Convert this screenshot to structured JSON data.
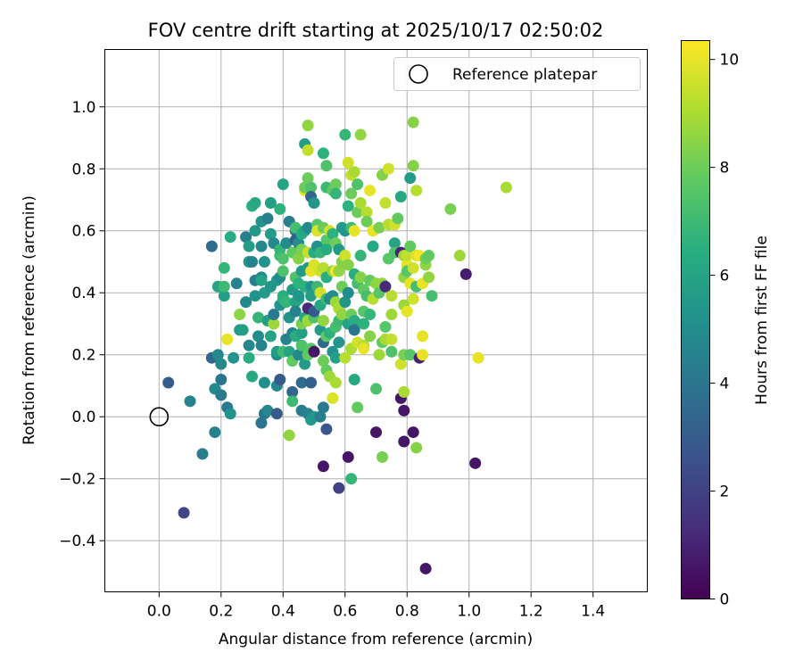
{
  "chart_data": {
    "type": "scatter",
    "title": "FOV centre drift starting at 2025/10/17 02:50:02",
    "xlabel": "Angular distance from reference (arcmin)",
    "ylabel": "Rotation from reference (arcmin)",
    "xlim": [
      -0.175,
      1.575
    ],
    "ylim": [
      -0.565,
      1.185
    ],
    "xticks": [
      0.0,
      0.2,
      0.4,
      0.6,
      0.8,
      1.0,
      1.2,
      1.4
    ],
    "xtick_labels": [
      "0.0",
      "0.2",
      "0.4",
      "0.6",
      "0.8",
      "1.0",
      "1.2",
      "1.4"
    ],
    "yticks": [
      -0.4,
      -0.2,
      0.0,
      0.2,
      0.4,
      0.6,
      0.8,
      1.0
    ],
    "ytick_labels": [
      "−0.4",
      "−0.2",
      "0.0",
      "0.2",
      "0.4",
      "0.6",
      "0.8",
      "1.0"
    ],
    "grid": true,
    "legend": {
      "position": "top-right",
      "entries": [
        "Reference platepar"
      ]
    },
    "reference_point": {
      "x": 0.0,
      "y": 0.0,
      "label": "Reference platepar"
    },
    "colorbar": {
      "label": "Hours from first FF file",
      "range": [
        0,
        10.35
      ],
      "ticks": [
        0,
        2,
        4,
        6,
        8,
        10
      ],
      "tick_labels": [
        "0",
        "2",
        "4",
        "6",
        "8",
        "10"
      ],
      "colormap": "viridis"
    },
    "points": [
      [
        0.03,
        0.11,
        3.0
      ],
      [
        0.08,
        -0.31,
        2.2
      ],
      [
        0.1,
        0.05,
        4.6
      ],
      [
        0.14,
        -0.12,
        4.4
      ],
      [
        0.17,
        0.19,
        3.4
      ],
      [
        0.17,
        0.55,
        3.6
      ],
      [
        0.18,
        0.09,
        4.9
      ],
      [
        0.18,
        -0.05,
        4.6
      ],
      [
        0.19,
        0.42,
        6.0
      ],
      [
        0.19,
        0.2,
        4.8
      ],
      [
        0.2,
        0.17,
        4.8
      ],
      [
        0.2,
        0.12,
        4.0
      ],
      [
        0.2,
        0.07,
        4.3
      ],
      [
        0.21,
        0.48,
        6.8
      ],
      [
        0.21,
        0.39,
        5.8
      ],
      [
        0.21,
        0.42,
        7.0
      ],
      [
        0.22,
        0.03,
        4.2
      ],
      [
        0.22,
        0.25,
        10.0
      ],
      [
        0.23,
        0.58,
        6.4
      ],
      [
        0.23,
        0.01,
        5.2
      ],
      [
        0.24,
        0.19,
        5.3
      ],
      [
        0.25,
        0.43,
        4.6
      ],
      [
        0.26,
        0.28,
        5.6
      ],
      [
        0.26,
        0.33,
        8.5
      ],
      [
        0.27,
        0.28,
        5.8
      ],
      [
        0.28,
        0.37,
        4.8
      ],
      [
        0.28,
        0.58,
        4.4
      ],
      [
        0.29,
        0.5,
        5.4
      ],
      [
        0.29,
        0.55,
        5.8
      ],
      [
        0.29,
        0.23,
        4.8
      ],
      [
        0.29,
        0.19,
        6.4
      ],
      [
        0.3,
        0.13,
        6.2
      ],
      [
        0.3,
        0.5,
        4.6
      ],
      [
        0.3,
        0.68,
        6.4
      ],
      [
        0.31,
        0.69,
        6.2
      ],
      [
        0.31,
        0.39,
        5.3
      ],
      [
        0.31,
        0.44,
        4.4
      ],
      [
        0.31,
        0.6,
        5.5
      ],
      [
        0.32,
        0.26,
        5.0
      ],
      [
        0.32,
        0.32,
        6.8
      ],
      [
        0.33,
        0.23,
        4.6
      ],
      [
        0.33,
        0.63,
        5.2
      ],
      [
        0.33,
        0.55,
        4.8
      ],
      [
        0.33,
        0.45,
        4.8
      ],
      [
        0.33,
        0.44,
        6.0
      ],
      [
        0.33,
        -0.02,
        4.0
      ],
      [
        0.34,
        0.4,
        5.6
      ],
      [
        0.34,
        0.11,
        5.1
      ],
      [
        0.34,
        0.5,
        5.2
      ],
      [
        0.34,
        0.01,
        4.0
      ],
      [
        0.35,
        0.64,
        4.4
      ],
      [
        0.35,
        0.31,
        5.8
      ],
      [
        0.35,
        0.02,
        4.8
      ],
      [
        0.36,
        0.69,
        5.8
      ],
      [
        0.36,
        0.59,
        5.6
      ],
      [
        0.36,
        0.42,
        5.4
      ],
      [
        0.36,
        0.26,
        6.0
      ],
      [
        0.37,
        0.3,
        8.8
      ],
      [
        0.37,
        0.33,
        4.2
      ],
      [
        0.37,
        0.56,
        4.8
      ],
      [
        0.38,
        0.01,
        3.0
      ],
      [
        0.38,
        0.1,
        4.7
      ],
      [
        0.38,
        0.2,
        5.0
      ],
      [
        0.38,
        0.21,
        5.6
      ],
      [
        0.38,
        0.44,
        5.4
      ],
      [
        0.39,
        0.52,
        7.0
      ],
      [
        0.39,
        0.67,
        6.6
      ],
      [
        0.39,
        0.36,
        5.2
      ],
      [
        0.39,
        0.45,
        5.0
      ],
      [
        0.39,
        0.54,
        6.8
      ],
      [
        0.39,
        0.12,
        3.0
      ],
      [
        0.4,
        0.51,
        7.4
      ],
      [
        0.4,
        0.75,
        6.0
      ],
      [
        0.4,
        0.38,
        6.5
      ],
      [
        0.4,
        0.39,
        6.5
      ],
      [
        0.4,
        0.47,
        7.4
      ],
      [
        0.4,
        0.21,
        7.0
      ],
      [
        0.41,
        0.37,
        6.8
      ],
      [
        0.41,
        0.56,
        5.0
      ],
      [
        0.41,
        0.25,
        4.6
      ],
      [
        0.42,
        0.63,
        4.4
      ],
      [
        0.42,
        0.32,
        5.2
      ],
      [
        0.42,
        0.21,
        6.0
      ],
      [
        0.42,
        -0.06,
        8.6
      ],
      [
        0.43,
        0.41,
        5.6
      ],
      [
        0.43,
        0.08,
        3.4
      ],
      [
        0.43,
        0.05,
        7.0
      ],
      [
        0.43,
        0.53,
        7.8
      ],
      [
        0.43,
        0.27,
        4.6
      ],
      [
        0.43,
        0.18,
        7.8
      ],
      [
        0.44,
        0.45,
        7.4
      ],
      [
        0.44,
        0.6,
        4.2
      ],
      [
        0.44,
        0.61,
        7.2
      ],
      [
        0.44,
        0.57,
        3.2
      ],
      [
        0.44,
        0.37,
        6.0
      ],
      [
        0.44,
        0.26,
        6.4
      ],
      [
        0.44,
        0.34,
        4.5
      ],
      [
        0.45,
        0.38,
        6.2
      ],
      [
        0.45,
        0.56,
        5.0
      ],
      [
        0.45,
        0.51,
        8.4
      ],
      [
        0.45,
        0.39,
        5.4
      ],
      [
        0.45,
        0.43,
        6.6
      ],
      [
        0.45,
        0.2,
        4.8
      ],
      [
        0.46,
        0.59,
        6.4
      ],
      [
        0.46,
        0.54,
        8.2
      ],
      [
        0.46,
        0.47,
        5.6
      ],
      [
        0.46,
        0.27,
        5.8
      ],
      [
        0.46,
        0.3,
        8.2
      ],
      [
        0.46,
        0.23,
        7.4
      ],
      [
        0.46,
        0.11,
        3.6
      ],
      [
        0.46,
        0.02,
        4.2
      ],
      [
        0.47,
        0.88,
        5.8
      ],
      [
        0.47,
        0.6,
        6.0
      ],
      [
        0.47,
        0.42,
        6.6
      ],
      [
        0.47,
        0.73,
        10.0
      ],
      [
        0.47,
        0.32,
        6.2
      ],
      [
        0.47,
        0.17,
        5.6
      ],
      [
        0.47,
        0.74,
        8.0
      ],
      [
        0.48,
        0.86,
        9.4
      ],
      [
        0.48,
        0.94,
        8.6
      ],
      [
        0.48,
        0.77,
        8.0
      ],
      [
        0.48,
        0.61,
        4.8
      ],
      [
        0.48,
        0.53,
        9.4
      ],
      [
        0.48,
        0.48,
        5.6
      ],
      [
        0.48,
        0.35,
        1.2
      ],
      [
        0.48,
        0.31,
        8.8
      ],
      [
        0.48,
        0.2,
        7.8
      ],
      [
        0.48,
        0.01,
        4.6
      ],
      [
        0.49,
        0.74,
        7.4
      ],
      [
        0.49,
        0.71,
        3.4
      ],
      [
        0.49,
        0.47,
        10.0
      ],
      [
        0.49,
        0.42,
        5.2
      ],
      [
        0.49,
        0.22,
        7.6
      ],
      [
        0.49,
        0.39,
        5.8
      ],
      [
        0.49,
        -0.01,
        5.6
      ],
      [
        0.49,
        0.11,
        3.2
      ],
      [
        0.5,
        0.69,
        5.4
      ],
      [
        0.5,
        0.49,
        9.8
      ],
      [
        0.5,
        0.32,
        7.4
      ],
      [
        0.5,
        0.34,
        3.0
      ],
      [
        0.5,
        0.21,
        0.6
      ],
      [
        0.5,
        0.53,
        6.4
      ],
      [
        0.5,
        0.0,
        5.4
      ],
      [
        0.51,
        0.62,
        7.6
      ],
      [
        0.51,
        0.6,
        9.8
      ],
      [
        0.51,
        0.55,
        5.2
      ],
      [
        0.51,
        0.42,
        7.0
      ],
      [
        0.52,
        0.47,
        9.6
      ],
      [
        0.52,
        0.53,
        6.8
      ],
      [
        0.52,
        0.4,
        9.6
      ],
      [
        0.52,
        0.36,
        6.2
      ],
      [
        0.52,
        0.28,
        5.6
      ],
      [
        0.52,
        0.0,
        4.4
      ],
      [
        0.53,
        0.85,
        6.6
      ],
      [
        0.53,
        0.61,
        8.0
      ],
      [
        0.53,
        0.48,
        9.2
      ],
      [
        0.53,
        0.31,
        8.6
      ],
      [
        0.53,
        0.24,
        3.6
      ],
      [
        0.53,
        0.18,
        8.0
      ],
      [
        0.53,
        0.03,
        4.3
      ],
      [
        0.53,
        -0.16,
        0.6
      ],
      [
        0.54,
        0.81,
        7.4
      ],
      [
        0.54,
        0.74,
        7.0
      ],
      [
        0.54,
        0.57,
        7.6
      ],
      [
        0.54,
        0.54,
        6.4
      ],
      [
        0.54,
        0.45,
        6.4
      ],
      [
        0.54,
        0.38,
        7.0
      ],
      [
        0.54,
        0.26,
        7.8
      ],
      [
        0.54,
        0.15,
        7.8
      ],
      [
        0.54,
        -0.04,
        2.8
      ],
      [
        0.55,
        0.6,
        9.6
      ],
      [
        0.55,
        0.38,
        4.8
      ],
      [
        0.55,
        0.27,
        6.6
      ],
      [
        0.55,
        0.13,
        8.8
      ],
      [
        0.56,
        0.73,
        7.8
      ],
      [
        0.56,
        0.59,
        6.6
      ],
      [
        0.56,
        0.47,
        8.6
      ],
      [
        0.56,
        0.39,
        5.0
      ],
      [
        0.56,
        0.21,
        5.2
      ],
      [
        0.56,
        0.06,
        9.8
      ],
      [
        0.57,
        0.75,
        8.0
      ],
      [
        0.57,
        0.72,
        6.8
      ],
      [
        0.57,
        0.56,
        8.0
      ],
      [
        0.57,
        0.47,
        10.2
      ],
      [
        0.57,
        0.37,
        8.8
      ],
      [
        0.57,
        0.19,
        5.8
      ],
      [
        0.57,
        0.29,
        7.2
      ],
      [
        0.57,
        0.11,
        9.0
      ],
      [
        0.58,
        0.54,
        5.6
      ],
      [
        0.58,
        0.47,
        8.6
      ],
      [
        0.58,
        0.35,
        9.0
      ],
      [
        0.58,
        0.31,
        7.0
      ],
      [
        0.58,
        0.24,
        5.4
      ],
      [
        0.58,
        -0.23,
        2.0
      ],
      [
        0.59,
        0.61,
        5.6
      ],
      [
        0.59,
        0.5,
        8.4
      ],
      [
        0.59,
        0.42,
        8.0
      ],
      [
        0.59,
        0.33,
        8.6
      ],
      [
        0.6,
        0.91,
        6.8
      ],
      [
        0.6,
        0.6,
        5.4
      ],
      [
        0.6,
        0.52,
        9.6
      ],
      [
        0.6,
        0.37,
        5.4
      ],
      [
        0.6,
        0.19,
        9.2
      ],
      [
        0.61,
        0.82,
        9.6
      ],
      [
        0.61,
        0.68,
        6.6
      ],
      [
        0.61,
        0.49,
        8.4
      ],
      [
        0.61,
        0.4,
        5.0
      ],
      [
        0.61,
        0.3,
        6.0
      ],
      [
        0.61,
        -0.13,
        0.6
      ],
      [
        0.62,
        0.61,
        7.0
      ],
      [
        0.62,
        0.72,
        8.0
      ],
      [
        0.62,
        0.78,
        9.4
      ],
      [
        0.62,
        0.33,
        8.0
      ],
      [
        0.62,
        0.22,
        9.0
      ],
      [
        0.62,
        -0.2,
        6.8
      ],
      [
        0.63,
        0.79,
        9.0
      ],
      [
        0.63,
        0.6,
        10.0
      ],
      [
        0.63,
        0.46,
        6.4
      ],
      [
        0.63,
        0.31,
        6.4
      ],
      [
        0.63,
        0.28,
        4.0
      ],
      [
        0.63,
        0.12,
        6.2
      ],
      [
        0.64,
        0.75,
        7.4
      ],
      [
        0.64,
        0.66,
        8.0
      ],
      [
        0.64,
        0.43,
        7.2
      ],
      [
        0.64,
        0.24,
        9.6
      ],
      [
        0.64,
        0.03,
        7.8
      ],
      [
        0.65,
        0.91,
        8.6
      ],
      [
        0.65,
        0.69,
        9.0
      ],
      [
        0.65,
        0.52,
        6.8
      ],
      [
        0.65,
        0.45,
        8.4
      ],
      [
        0.66,
        0.41,
        7.8
      ],
      [
        0.66,
        0.34,
        7.6
      ],
      [
        0.66,
        0.3,
        6.6
      ],
      [
        0.66,
        0.23,
        9.2
      ],
      [
        0.66,
        0.22,
        10.0
      ],
      [
        0.67,
        0.66,
        9.2
      ],
      [
        0.67,
        0.63,
        8.0
      ],
      [
        0.67,
        0.39,
        7.2
      ],
      [
        0.68,
        0.73,
        10.0
      ],
      [
        0.68,
        0.44,
        7.8
      ],
      [
        0.68,
        0.33,
        6.8
      ],
      [
        0.68,
        0.26,
        8.4
      ],
      [
        0.69,
        0.6,
        10.0
      ],
      [
        0.69,
        0.55,
        6.2
      ],
      [
        0.69,
        0.38,
        9.2
      ],
      [
        0.7,
        0.43,
        8.6
      ],
      [
        0.7,
        0.09,
        7.4
      ],
      [
        0.7,
        -0.05,
        0.6
      ],
      [
        0.71,
        0.61,
        8.2
      ],
      [
        0.71,
        0.4,
        7.6
      ],
      [
        0.71,
        0.2,
        8.8
      ],
      [
        0.72,
        0.78,
        8.4
      ],
      [
        0.72,
        0.43,
        8.6
      ],
      [
        0.72,
        0.24,
        7.8
      ],
      [
        0.72,
        -0.13,
        8.2
      ],
      [
        0.73,
        0.69,
        9.4
      ],
      [
        0.73,
        0.42,
        1.2
      ],
      [
        0.73,
        0.29,
        7.6
      ],
      [
        0.73,
        0.25,
        9.0
      ],
      [
        0.74,
        0.8,
        9.6
      ],
      [
        0.74,
        0.62,
        9.2
      ],
      [
        0.74,
        0.51,
        7.6
      ],
      [
        0.75,
        0.39,
        9.2
      ],
      [
        0.75,
        0.33,
        8.8
      ],
      [
        0.75,
        0.25,
        9.4
      ],
      [
        0.75,
        0.21,
        7.4
      ],
      [
        0.76,
        0.62,
        9.6
      ],
      [
        0.76,
        0.56,
        6.0
      ],
      [
        0.76,
        0.53,
        7.4
      ],
      [
        0.77,
        0.64,
        7.8
      ],
      [
        0.78,
        0.71,
        6.2
      ],
      [
        0.78,
        0.53,
        1.0
      ],
      [
        0.78,
        0.17,
        9.6
      ],
      [
        0.78,
        0.06,
        0.6
      ],
      [
        0.79,
        0.52,
        8.8
      ],
      [
        0.79,
        0.45,
        8.6
      ],
      [
        0.79,
        0.36,
        8.8
      ],
      [
        0.79,
        0.2,
        8.2
      ],
      [
        0.79,
        0.08,
        9.0
      ],
      [
        0.79,
        0.02,
        0.6
      ],
      [
        0.79,
        -0.08,
        0.6
      ],
      [
        0.8,
        0.49,
        10.0
      ],
      [
        0.8,
        0.52,
        9.4
      ],
      [
        0.8,
        0.47,
        7.6
      ],
      [
        0.8,
        0.34,
        10.0
      ],
      [
        0.81,
        0.77,
        5.6
      ],
      [
        0.81,
        0.55,
        7.8
      ],
      [
        0.81,
        0.43,
        10.0
      ],
      [
        0.81,
        0.2,
        7.6
      ],
      [
        0.82,
        0.95,
        8.4
      ],
      [
        0.82,
        0.81,
        8.4
      ],
      [
        0.82,
        0.48,
        9.6
      ],
      [
        0.82,
        0.38,
        9.6
      ],
      [
        0.82,
        -0.05,
        0.6
      ],
      [
        0.83,
        0.73,
        9.2
      ],
      [
        0.83,
        0.52,
        9.8
      ],
      [
        0.83,
        0.42,
        7.2
      ],
      [
        0.83,
        -0.1,
        8.4
      ],
      [
        0.84,
        0.52,
        10.2
      ],
      [
        0.84,
        0.19,
        1.0
      ],
      [
        0.85,
        0.43,
        10.0
      ],
      [
        0.85,
        0.26,
        10.0
      ],
      [
        0.85,
        0.2,
        10.0
      ],
      [
        0.86,
        0.49,
        8.6
      ],
      [
        0.86,
        0.51,
        8.0
      ],
      [
        0.86,
        -0.49,
        0.6
      ],
      [
        0.87,
        0.45,
        8.6
      ],
      [
        0.87,
        0.52,
        7.8
      ],
      [
        0.88,
        0.39,
        7.2
      ],
      [
        0.94,
        0.67,
        8.2
      ],
      [
        0.97,
        0.52,
        8.8
      ],
      [
        0.99,
        0.46,
        0.8
      ],
      [
        1.02,
        -0.15,
        0.6
      ],
      [
        1.03,
        0.19,
        10.0
      ],
      [
        1.12,
        0.74,
        9.0
      ]
    ]
  }
}
